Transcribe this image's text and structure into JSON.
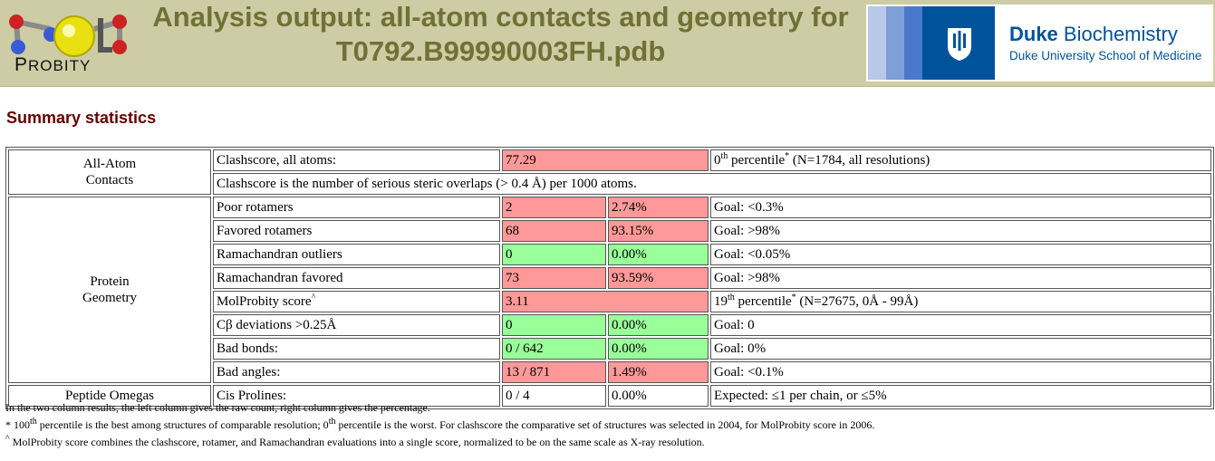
{
  "header": {
    "logo_text_first": "P",
    "logo_text_rest": "ROBITY",
    "title_line1": "Analysis output: all-atom contacts and geometry for",
    "title_line2": "T0792.B99990003FH.pdb",
    "duke_name_bold": "Duke",
    "duke_name_rest": " Biochemistry",
    "duke_school": "Duke University School of Medicine"
  },
  "section_title": "Summary statistics",
  "table": {
    "allatom_label_1": "All-Atom",
    "allatom_label_2": "Contacts",
    "clash_label": "Clashscore, all atoms:",
    "clash_value": "77.29",
    "clash_pct_sup": "th",
    "clash_pct_num": "0",
    "clash_pct_word": " percentile",
    "clash_pct_star": "*",
    "clash_pct_note": " (N=1784, all resolutions)",
    "clash_desc": "Clashscore is the number of serious steric overlaps (> 0.4 Å) per 1000 atoms.",
    "protein_label_1": "Protein",
    "protein_label_2": "Geometry",
    "poor_rot_label": "Poor rotamers",
    "poor_rot_count": "2",
    "poor_rot_pct": "2.74%",
    "poor_rot_goal": "Goal: <0.3%",
    "fav_rot_label": "Favored rotamers",
    "fav_rot_count": "68",
    "fav_rot_pct": "93.15%",
    "fav_rot_goal": "Goal: >98%",
    "rama_out_label": "Ramachandran outliers",
    "rama_out_count": "0",
    "rama_out_pct": "0.00%",
    "rama_out_goal": "Goal: <0.05%",
    "rama_fav_label": "Ramachandran favored",
    "rama_fav_count": "73",
    "rama_fav_pct": "93.59%",
    "rama_fav_goal": "Goal: >98%",
    "molp_label": "MolProbity score",
    "molp_caret": "^",
    "molp_value": "3.11",
    "molp_pct_num": "19",
    "molp_pct_sup": "th",
    "molp_pct_word": " percentile",
    "molp_pct_star": "*",
    "molp_pct_note": " (N=27675, 0Å - 99Å)",
    "cb_label": "Cβ deviations >0.25Å",
    "cb_count": "0",
    "cb_pct": "0.00%",
    "cb_goal": "Goal: 0",
    "bonds_label": "Bad bonds:",
    "bonds_count": "0 / 642",
    "bonds_pct": "0.00%",
    "bonds_goal": "Goal: 0%",
    "angles_label": "Bad angles:",
    "angles_count": "13 / 871",
    "angles_pct": "1.49%",
    "angles_goal": "Goal: <0.1%",
    "omega_label": "Peptide Omegas",
    "cis_label": "Cis Prolines:",
    "cis_count": "0 / 4",
    "cis_pct": "0.00%",
    "cis_goal": "Expected: ≤1 per chain, or ≤5%"
  },
  "notes": {
    "line1": "In the two column results, the left column gives the raw count, right column gives the percentage.",
    "l2_a": "* 100",
    "l2_sup1": "th",
    "l2_b": " percentile is the best among structures of comparable resolution; 0",
    "l2_sup2": "th",
    "l2_c": " percentile is the worst. For clashscore the comparative set of structures was selected in 2004, for MolProbity score in 2006.",
    "l3_caret": "^",
    "l3_text": " MolProbity score combines the clashscore, rotamer, and Ramachandran evaluations into a single score, normalized to be on the same scale as X-ray resolution."
  },
  "colors": {
    "bad": "#ff9999",
    "good": "#99ff99",
    "banner": "#cdcca4",
    "title": "#717136",
    "duke_blue": "#00539b"
  },
  "icons": {
    "logo": "molprobity-molecule-logo",
    "duke": "duke-chapel-shield-icon"
  }
}
